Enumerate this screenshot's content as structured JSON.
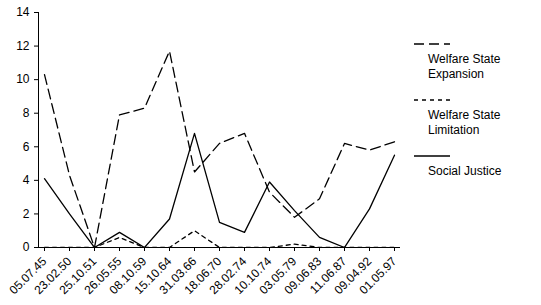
{
  "chart_data": {
    "type": "line",
    "categories": [
      "05.07.45",
      "23.02.50",
      "25.10.51",
      "26.05.55",
      "08.10.59",
      "15.10.64",
      "31.03.66",
      "18.06.70",
      "28.02.74",
      "10.10.74",
      "03.05.79",
      "09.06.83",
      "11.06.87",
      "09.04.92",
      "01.05.97"
    ],
    "series": [
      {
        "name": "Welfare State Expansion",
        "color": "#000000",
        "line_style": "long_dash",
        "values": [
          10.3,
          4.3,
          0,
          7.9,
          8.3,
          11.7,
          4.5,
          6.2,
          6.8,
          3.3,
          1.8,
          2.9,
          6.2,
          5.8,
          6.3
        ]
      },
      {
        "name": "Welfare State Limitation",
        "color": "#000000",
        "line_style": "short_dash",
        "values": [
          0,
          0,
          0,
          0.6,
          0,
          0,
          1.0,
          0,
          0,
          0,
          0.2,
          0,
          0,
          0,
          0
        ]
      },
      {
        "name": "Social Justice",
        "color": "#000000",
        "line_style": "solid",
        "values": [
          4.1,
          2.0,
          0,
          0.9,
          0,
          1.7,
          6.8,
          1.5,
          0.9,
          3.9,
          2.2,
          0.6,
          0,
          2.3,
          5.5
        ]
      }
    ],
    "ylim": [
      0,
      14
    ],
    "yticks": [
      0,
      2,
      4,
      6,
      8,
      10,
      12,
      14
    ],
    "grid": false,
    "legend": "right"
  }
}
